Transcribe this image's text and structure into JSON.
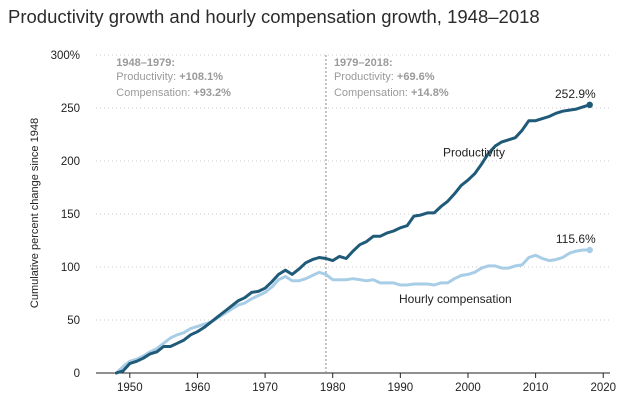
{
  "chart_title": "Productivity growth and hourly compensation growth, 1948–2018",
  "chart_data": {
    "type": "line",
    "title": "Productivity growth and hourly compensation growth, 1948–2018",
    "xlabel": "",
    "ylabel": "Cumulative percent change since 1948",
    "xlim": [
      1945,
      2021
    ],
    "ylim": [
      0,
      300
    ],
    "x_ticks": [
      1950,
      1960,
      1970,
      1980,
      1990,
      2000,
      2010,
      2020
    ],
    "y_ticks": [
      {
        "value": 0,
        "label": "0"
      },
      {
        "value": 50,
        "label": "50"
      },
      {
        "value": 100,
        "label": "100"
      },
      {
        "value": 150,
        "label": "150"
      },
      {
        "value": 200,
        "label": "200"
      },
      {
        "value": 250,
        "label": "250"
      },
      {
        "value": 300,
        "label": "300%"
      }
    ],
    "grid": "horizontal dotted",
    "divider_year": 1979,
    "periods": [
      {
        "heading": "1948–1979:",
        "productivity_label": "Productivity:",
        "productivity_value": "+108.1%",
        "compensation_label": "Compensation:",
        "compensation_value": "+93.2%"
      },
      {
        "heading": "1979–2018:",
        "productivity_label": "Productivity:",
        "productivity_value": "+69.6%",
        "compensation_label": "Compensation:",
        "compensation_value": "+14.8%"
      }
    ],
    "series": [
      {
        "name": "Productivity",
        "color": "#1f5a78",
        "end_label": "252.9%",
        "x": [
          1948,
          1949,
          1950,
          1951,
          1952,
          1953,
          1954,
          1955,
          1956,
          1957,
          1958,
          1959,
          1960,
          1961,
          1962,
          1963,
          1964,
          1965,
          1966,
          1967,
          1968,
          1969,
          1970,
          1971,
          1972,
          1973,
          1974,
          1975,
          1976,
          1977,
          1978,
          1979,
          1980,
          1981,
          1982,
          1983,
          1984,
          1985,
          1986,
          1987,
          1988,
          1989,
          1990,
          1991,
          1992,
          1993,
          1994,
          1995,
          1996,
          1997,
          1998,
          1999,
          2000,
          2001,
          2002,
          2003,
          2004,
          2005,
          2006,
          2007,
          2008,
          2009,
          2010,
          2011,
          2012,
          2013,
          2014,
          2015,
          2016,
          2017,
          2018
        ],
        "y": [
          0,
          2,
          9,
          11,
          14,
          18,
          20,
          25,
          25,
          28,
          31,
          36,
          39,
          43,
          48,
          53,
          58,
          63,
          68,
          71,
          76,
          77,
          80,
          86,
          93,
          97,
          93,
          98,
          104,
          107,
          109,
          108,
          106,
          110,
          108,
          115,
          121,
          124,
          129,
          129,
          132,
          134,
          137,
          139,
          148,
          149,
          151,
          151,
          157,
          162,
          169,
          177,
          182,
          188,
          197,
          207,
          214,
          218,
          220,
          222,
          229,
          238,
          238,
          240,
          242,
          245,
          247,
          248,
          249,
          251,
          253
        ]
      },
      {
        "name": "Hourly compensation",
        "color": "#a8cde6",
        "end_label": "115.6%",
        "x": [
          1948,
          1949,
          1950,
          1951,
          1952,
          1953,
          1954,
          1955,
          1956,
          1957,
          1958,
          1959,
          1960,
          1961,
          1962,
          1963,
          1964,
          1965,
          1966,
          1967,
          1968,
          1969,
          1970,
          1971,
          1972,
          1973,
          1974,
          1975,
          1976,
          1977,
          1978,
          1979,
          1980,
          1981,
          1982,
          1983,
          1984,
          1985,
          1986,
          1987,
          1988,
          1989,
          1990,
          1991,
          1992,
          1993,
          1994,
          1995,
          1996,
          1997,
          1998,
          1999,
          2000,
          2001,
          2002,
          2003,
          2004,
          2005,
          2006,
          2007,
          2008,
          2009,
          2010,
          2011,
          2012,
          2013,
          2014,
          2015,
          2016,
          2017,
          2018
        ],
        "y": [
          0,
          6,
          11,
          13,
          16,
          20,
          23,
          28,
          33,
          36,
          38,
          42,
          44,
          46,
          48,
          52,
          56,
          60,
          64,
          66,
          70,
          73,
          76,
          81,
          88,
          91,
          87,
          87,
          89,
          92,
          95,
          93,
          88,
          88,
          88,
          89,
          88,
          87,
          88,
          85,
          85,
          85,
          83,
          83,
          84,
          84,
          84,
          83,
          85,
          85,
          89,
          92,
          93,
          95,
          99,
          101,
          101,
          99,
          99,
          101,
          102,
          109,
          111,
          108,
          106,
          107,
          109,
          113,
          115,
          116,
          116
        ]
      }
    ]
  }
}
